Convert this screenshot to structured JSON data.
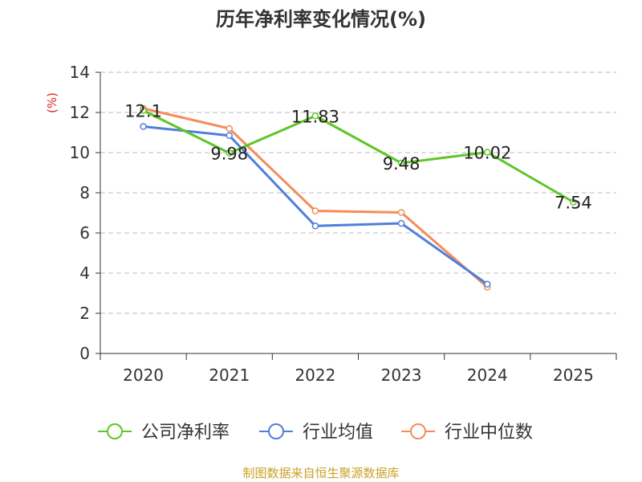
{
  "chart_data": {
    "type": "line",
    "title": "历年净利率变化情况(%)",
    "ylabel": "(%)",
    "xlabel": "",
    "categories": [
      "2020",
      "2021",
      "2022",
      "2023",
      "2024",
      "2025"
    ],
    "ylim": [
      0,
      14
    ],
    "yticks": [
      "0",
      "2",
      "4",
      "6",
      "8",
      "10",
      "12",
      "14"
    ],
    "grid": "horizontal-dashed",
    "legend_position": "bottom",
    "series": [
      {
        "name": "公司净利率",
        "color": "#5fc528",
        "values": [
          12.1,
          9.98,
          11.83,
          9.48,
          10.02,
          7.54
        ],
        "labels": [
          "12.1",
          "9.98",
          "11.83",
          "9.48",
          "10.02",
          "7.54"
        ]
      },
      {
        "name": "行业均值",
        "color": "#4f7fdb",
        "values": [
          11.3,
          10.85,
          6.35,
          6.48,
          3.45,
          null
        ]
      },
      {
        "name": "行业中位数",
        "color": "#f58c5a",
        "values": [
          12.2,
          11.2,
          7.1,
          7.02,
          3.3,
          null
        ]
      }
    ],
    "source": "制图数据来自恒生聚源数据库"
  }
}
